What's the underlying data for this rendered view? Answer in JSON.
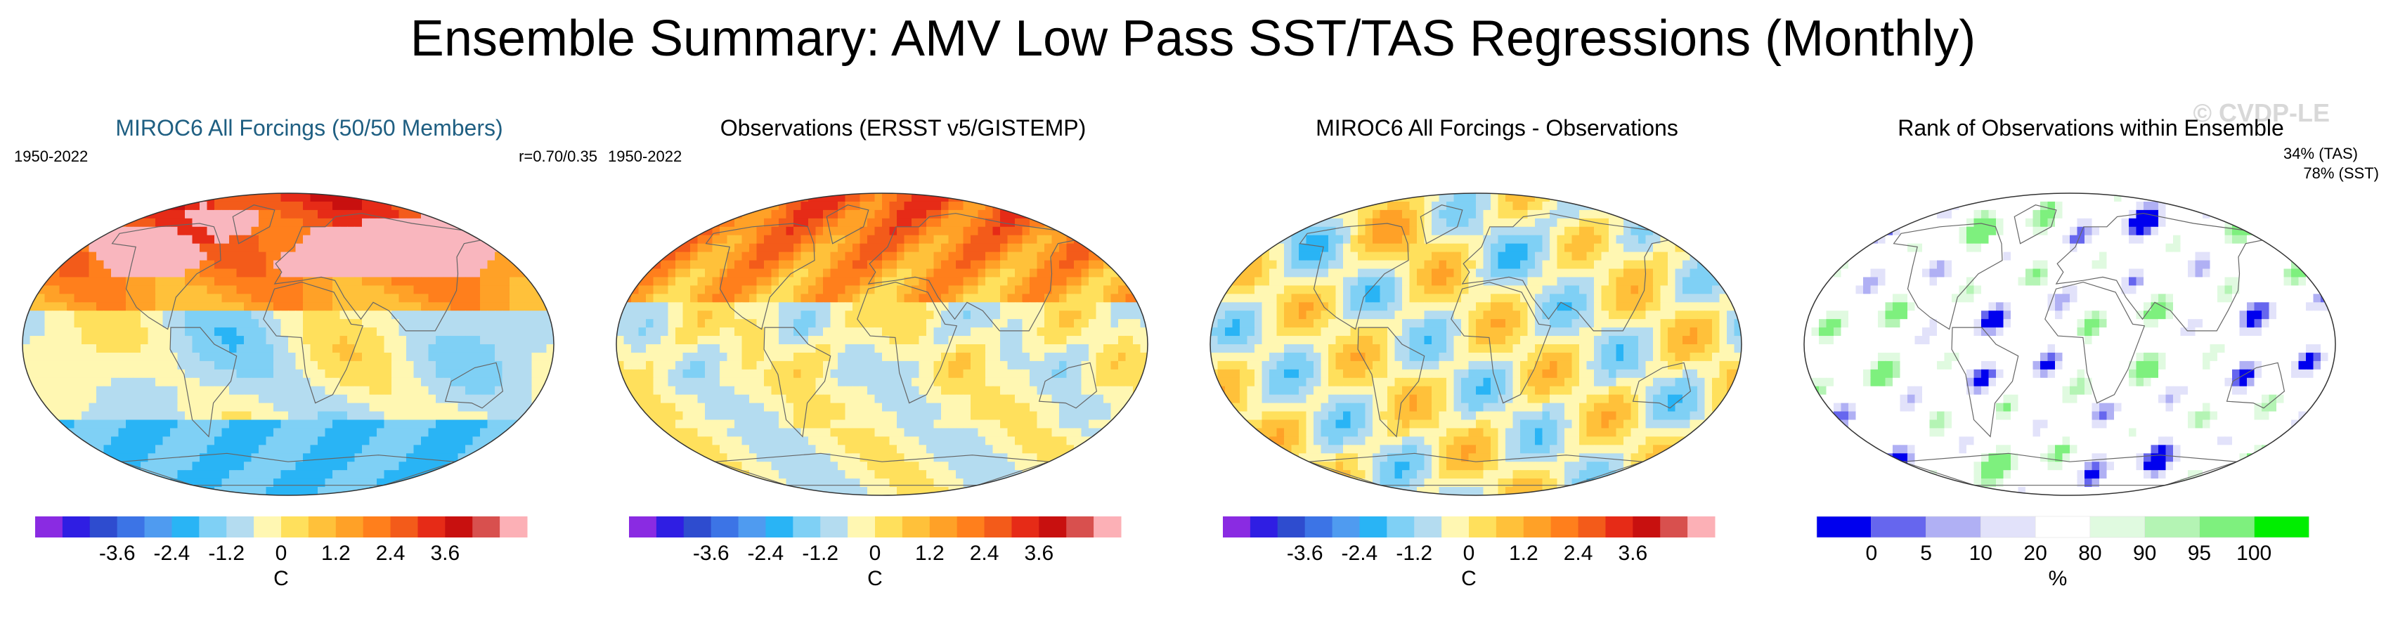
{
  "page": {
    "title": "Ensemble Summary: AMV Low Pass SST/TAS Regressions (Monthly)",
    "watermark": "© CVDP-LE"
  },
  "palette": {
    "temperature": [
      "#8a2be2",
      "#2f1ee3",
      "#2e4ccf",
      "#3c74e6",
      "#4f9bf0",
      "#29b4f5",
      "#7fd0f5",
      "#b4dcf0",
      "#fff7b2",
      "#ffe05c",
      "#ffc13a",
      "#ffa127",
      "#ff7f1c",
      "#f35b1a",
      "#e62b17",
      "#c8100f",
      "#d8504e",
      "#fcb0b6"
    ],
    "rank": [
      "#0000ee",
      "#6666ee",
      "#b0b0f4",
      "#e2e2fa",
      "#ffffff",
      "#e0fae0",
      "#b4f4b4",
      "#7ef07e",
      "#00ee00"
    ],
    "land_mask": "#f9b6be",
    "grid": "#bfbfbf"
  },
  "chart_data": [
    {
      "type": "heatmap",
      "title": "MIROC6 All Forcings (50/50 Members)",
      "title_color": "#1f5f82",
      "period": "1950-2022",
      "annotation": "r=0.70/0.35",
      "colorbar": {
        "ticks": [
          "-3.6",
          "-2.4",
          "-1.2",
          "0",
          "1.2",
          "2.4",
          "3.6"
        ],
        "unit": "C",
        "tick_levels": [
          -3.6,
          -2.4,
          -1.2,
          0,
          1.2,
          2.4,
          3.6
        ],
        "range": [
          -5.4,
          5.4
        ]
      },
      "pattern": "model"
    },
    {
      "type": "heatmap",
      "title": "Observations (ERSST v5/GISTEMP)",
      "title_color": "#000000",
      "period": "1950-2022",
      "annotation": "",
      "colorbar": {
        "ticks": [
          "-3.6",
          "-2.4",
          "-1.2",
          "0",
          "1.2",
          "2.4",
          "3.6"
        ],
        "unit": "C",
        "tick_levels": [
          -3.6,
          -2.4,
          -1.2,
          0,
          1.2,
          2.4,
          3.6
        ],
        "range": [
          -5.4,
          5.4
        ]
      },
      "pattern": "obs"
    },
    {
      "type": "heatmap",
      "title": "MIROC6 All Forcings - Observations",
      "title_color": "#000000",
      "period": "",
      "annotation": "",
      "colorbar": {
        "ticks": [
          "-3.6",
          "-2.4",
          "-1.2",
          "0",
          "1.2",
          "2.4",
          "3.6"
        ],
        "unit": "C",
        "tick_levels": [
          -3.6,
          -2.4,
          -1.2,
          0,
          1.2,
          2.4,
          3.6
        ],
        "range": [
          -5.4,
          5.4
        ]
      },
      "pattern": "diff"
    },
    {
      "type": "heatmap",
      "title": "Rank of Observations within Ensemble",
      "title_color": "#000000",
      "period": "",
      "annotation": "",
      "stats": [
        "34% (TAS)",
        "78% (SST)"
      ],
      "colorbar": {
        "ticks": [
          "0",
          "5",
          "10",
          "20",
          "80",
          "90",
          "95",
          "100"
        ],
        "unit": "%",
        "tick_levels": [
          0,
          5,
          10,
          20,
          80,
          90,
          95,
          100
        ],
        "range": [
          0,
          100
        ]
      },
      "pattern": "rank"
    }
  ]
}
